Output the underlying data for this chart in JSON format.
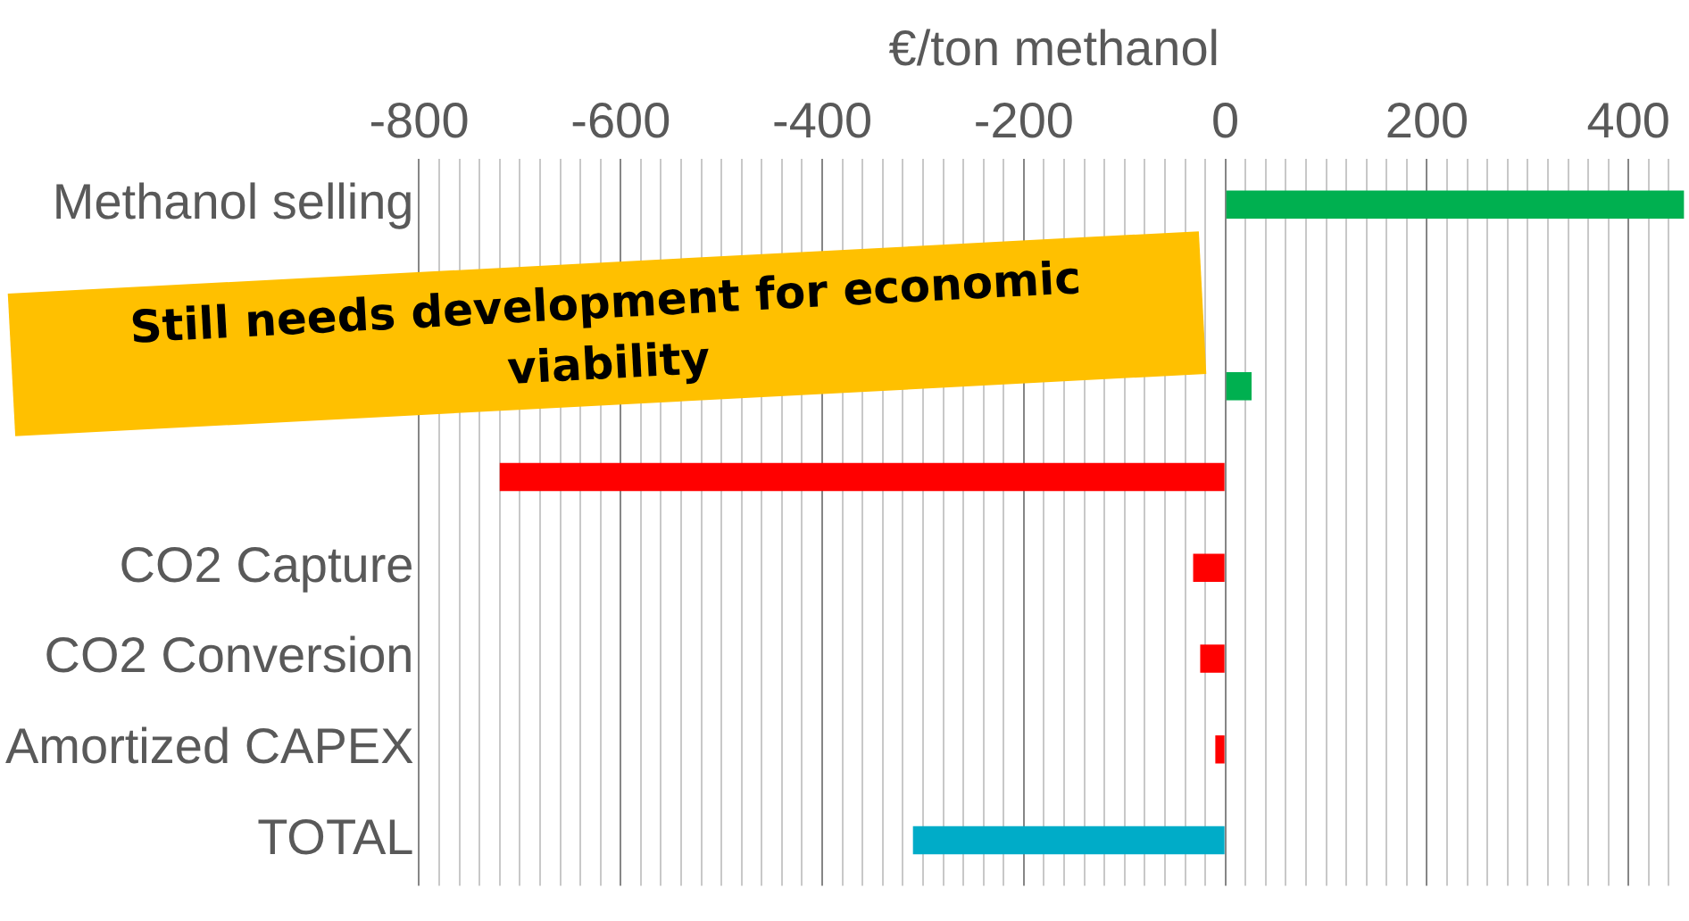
{
  "chart_data": {
    "type": "bar",
    "orientation": "horizontal",
    "xlabel": "€/ton methanol",
    "categories": [
      "Methanol selling",
      null,
      null,
      null,
      "CO2 Capture",
      "CO2 Conversion",
      "Amortized CAPEX",
      "TOTAL"
    ],
    "values": [
      455,
      null,
      26,
      -720,
      -32,
      -25,
      -10,
      -310
    ],
    "colors": [
      "#00b050",
      "#00b050",
      "#00b050",
      "#ff0000",
      "#ff0000",
      "#ff0000",
      "#ff0000",
      "#00acc8"
    ],
    "xlim": [
      -800,
      460
    ],
    "xticks": [
      -800,
      {
        "value": -780,
        "label": null
      },
      {
        "value": -760,
        "label": null
      },
      {
        "value": -740,
        "label": null
      },
      {
        "value": -720,
        "label": null
      },
      {
        "value": -700,
        "label": null
      },
      {
        "value": -680,
        "label": null
      },
      {
        "value": -660,
        "label": null
      },
      {
        "value": -640,
        "label": null
      },
      {
        "value": -620,
        "label": null
      },
      -600,
      {
        "value": -580,
        "label": null
      },
      {
        "value": -560,
        "label": null
      },
      {
        "value": -540,
        "label": null
      },
      {
        "value": -520,
        "label": null
      },
      {
        "value": -500,
        "label": null
      },
      {
        "value": -480,
        "label": null
      },
      {
        "value": -460,
        "label": null
      },
      {
        "value": -440,
        "label": null
      },
      {
        "value": -420,
        "label": null
      },
      -400,
      {
        "value": -380,
        "label": null
      },
      {
        "value": -360,
        "label": null
      },
      {
        "value": -340,
        "label": null
      },
      {
        "value": -320,
        "label": null
      },
      {
        "value": -300,
        "label": null
      },
      {
        "value": -280,
        "label": null
      },
      {
        "value": -260,
        "label": null
      },
      {
        "value": -240,
        "label": null
      },
      {
        "value": -220,
        "label": null
      },
      -200,
      {
        "value": -180,
        "label": null
      },
      {
        "value": -160,
        "label": null
      },
      {
        "value": -140,
        "label": null
      },
      {
        "value": -120,
        "label": null
      },
      {
        "value": -100,
        "label": null
      },
      {
        "value": -80,
        "label": null
      },
      {
        "value": -60,
        "label": null
      },
      {
        "value": -40,
        "label": null
      },
      {
        "value": -20,
        "label": null
      },
      0,
      {
        "value": 20,
        "label": null
      },
      {
        "value": 40,
        "label": null
      },
      {
        "value": 60,
        "label": null
      },
      {
        "value": 80,
        "label": null
      },
      {
        "value": 100,
        "label": null
      },
      {
        "value": 120,
        "label": null
      },
      {
        "value": 140,
        "label": null
      },
      {
        "value": 160,
        "label": null
      },
      {
        "value": 180,
        "label": null
      },
      200,
      {
        "value": 220,
        "label": null
      },
      {
        "value": 240,
        "label": null
      },
      {
        "value": 260,
        "label": null
      },
      {
        "value": 280,
        "label": null
      },
      {
        "value": 300,
        "label": null
      },
      {
        "value": 320,
        "label": null
      },
      {
        "value": 340,
        "label": null
      },
      {
        "value": 360,
        "label": null
      },
      {
        "value": 380,
        "label": null
      },
      400,
      {
        "value": 420,
        "label": null
      },
      {
        "value": 440,
        "label": null
      }
    ],
    "grid": "x",
    "legend": false,
    "annotations": [
      "Still needs development for economic viability"
    ]
  }
}
